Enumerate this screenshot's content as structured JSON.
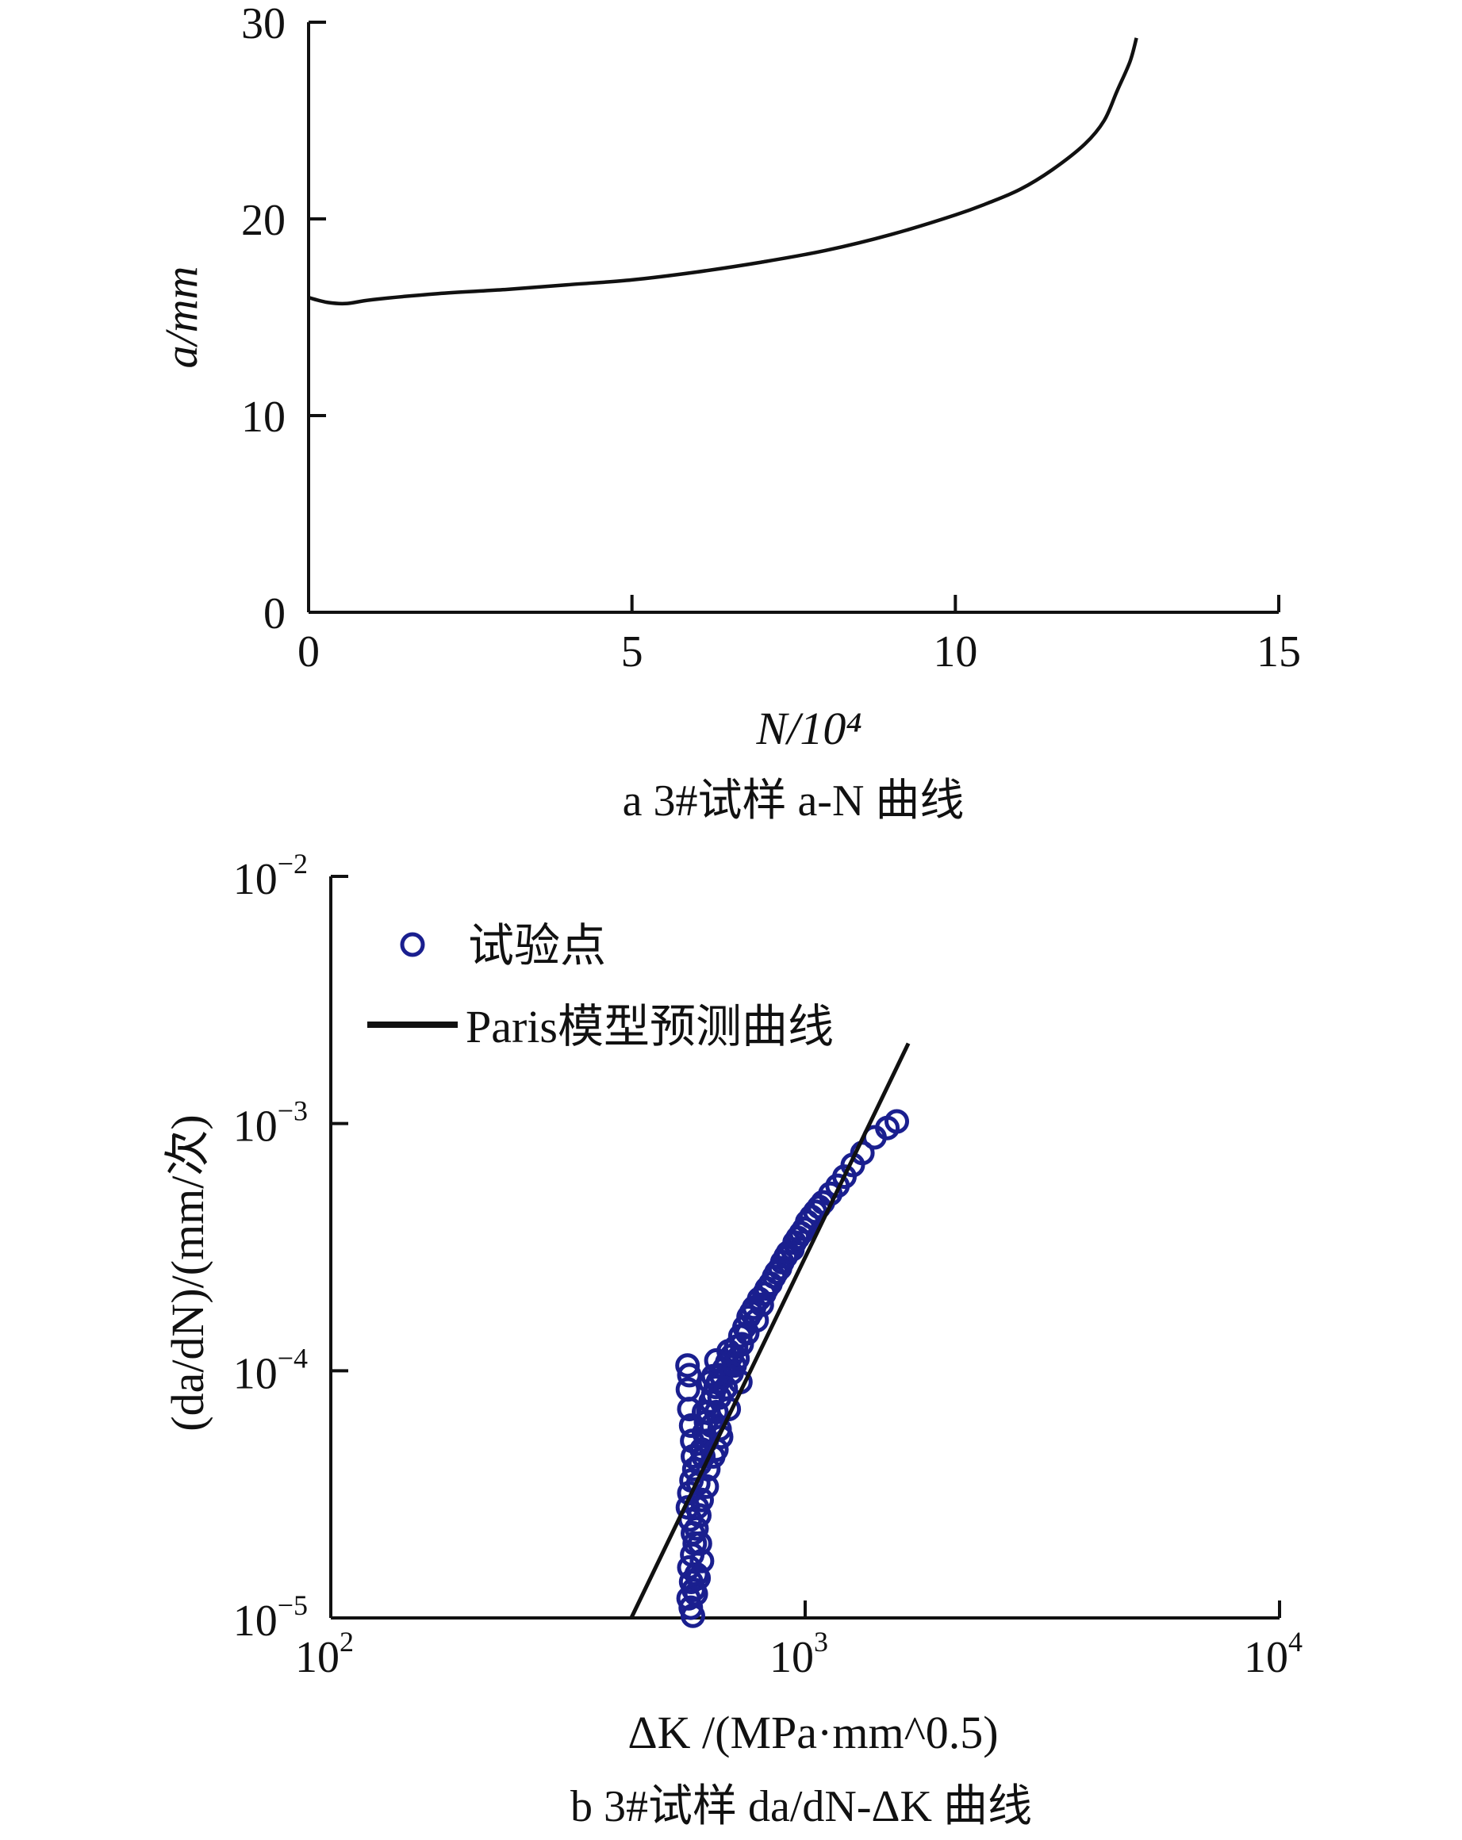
{
  "chart_data": [
    {
      "type": "line",
      "caption": "a  3#试样 a-N 曲线",
      "xlabel": "N/10⁴",
      "ylabel": "a/mm",
      "xlim": [
        0,
        15
      ],
      "ylim": [
        0,
        30
      ],
      "x_ticks": [
        "0",
        "5",
        "10",
        "15"
      ],
      "y_ticks": [
        "0",
        "10",
        "20",
        "30"
      ],
      "grid": false,
      "series": [
        {
          "x": [
            0,
            0.3,
            0.6,
            1,
            2,
            3,
            4,
            5,
            6,
            7,
            8,
            9,
            10,
            10.5,
            11,
            11.5,
            12,
            12.3,
            12.5,
            12.7,
            12.8
          ],
          "y": [
            16.0,
            15.75,
            15.7,
            15.9,
            16.2,
            16.4,
            16.65,
            16.9,
            17.3,
            17.8,
            18.4,
            19.2,
            20.2,
            20.8,
            21.5,
            22.5,
            23.8,
            25.0,
            26.5,
            28.0,
            29.2
          ]
        }
      ]
    },
    {
      "type": "scatter",
      "caption": "b  3#试样 da/dN-ΔK 曲线",
      "xlabel": "ΔK /(MPa·mm^0.5)",
      "ylabel": "(da/dN)/(mm/次)",
      "x_scale": "log",
      "y_scale": "log",
      "xlim": [
        100,
        10000
      ],
      "ylim": [
        1e-05,
        0.01
      ],
      "x_ticks": [
        "10^2",
        "10^3",
        "10^4"
      ],
      "y_ticks": [
        "10^-5",
        "10^-4",
        "10^-3",
        "10^-2"
      ],
      "grid": false,
      "legend_position": "top-left",
      "series": [
        {
          "name": "试验点",
          "marker": "circle",
          "color": "#1a1f8f",
          "points": [
            [
              565,
              0.000105
            ],
            [
              570,
              9.6e-05
            ],
            [
              566,
              8.4e-05
            ],
            [
              570,
              7e-05
            ],
            [
              575,
              6e-05
            ],
            [
              578,
              5.2e-05
            ],
            [
              580,
              4.5e-05
            ],
            [
              584,
              4e-05
            ],
            [
              576,
              3.6e-05
            ],
            [
              570,
              3.2e-05
            ],
            [
              566,
              2.8e-05
            ],
            [
              572,
              2.5e-05
            ],
            [
              580,
              2.2e-05
            ],
            [
              585,
              2e-05
            ],
            [
              578,
              1.8e-05
            ],
            [
              570,
              1.6e-05
            ],
            [
              575,
              1.4e-05
            ],
            [
              582,
              1.3e-05
            ],
            [
              568,
              1.2e-05
            ],
            [
              574,
              1.1e-05
            ],
            [
              580,
              1.02e-05
            ],
            [
              590,
              1.5e-05
            ],
            [
              592,
              2.8e-05
            ],
            [
              595,
              3.5e-05
            ],
            [
              600,
              4.2e-05
            ],
            [
              605,
              4.8e-05
            ],
            [
              612,
              5.6e-05
            ],
            [
              618,
              6.2e-05
            ],
            [
              625,
              6.8e-05
            ],
            [
              632,
              7.5e-05
            ],
            [
              640,
              8e-05
            ],
            [
              648,
              8.6e-05
            ],
            [
              655,
              9e-05
            ],
            [
              664,
              9.6e-05
            ],
            [
              675,
              0.000102
            ],
            [
              685,
              0.000108
            ],
            [
              700,
              0.000115
            ],
            [
              715,
              0.000125
            ],
            [
              730,
              0.000138
            ],
            [
              745,
              0.00015
            ],
            [
              760,
              0.000165
            ],
            [
              780,
              0.00018
            ],
            [
              800,
              0.000195
            ],
            [
              820,
              0.000205
            ],
            [
              845,
              0.000225
            ],
            [
              870,
              0.00025
            ],
            [
              895,
              0.000275
            ],
            [
              920,
              0.0003
            ],
            [
              950,
              0.00033
            ],
            [
              980,
              0.00036
            ],
            [
              1010,
              0.0004
            ],
            [
              1050,
              0.00044
            ],
            [
              1090,
              0.00048
            ],
            [
              1130,
              0.00052
            ],
            [
              1170,
              0.00056
            ],
            [
              1210,
              0.00061
            ],
            [
              1260,
              0.00068
            ],
            [
              1320,
              0.00076
            ],
            [
              1400,
              0.00088
            ],
            [
              1490,
              0.00096
            ],
            [
              1560,
              0.00102
            ],
            [
              610,
              4.5e-05
            ],
            [
              620,
              5.2e-05
            ],
            [
              635,
              6e-05
            ],
            [
              650,
              6.8e-05
            ],
            [
              660,
              5.8e-05
            ],
            [
              640,
              4.5e-05
            ],
            [
              625,
              4e-05
            ],
            [
              612,
              6.8e-05
            ],
            [
              630,
              9e-05
            ],
            [
              650,
              0.00011
            ],
            [
              640,
              9.5e-05
            ],
            [
              660,
              7.8e-05
            ],
            [
              680,
              8.5e-05
            ],
            [
              700,
              9.8e-05
            ],
            [
              690,
              0.00012
            ],
            [
              710,
              0.000105
            ],
            [
              720,
              0.000112
            ],
            [
              735,
              0.000128
            ],
            [
              755,
              0.000142
            ],
            [
              770,
              0.000172
            ],
            [
              790,
              0.00016
            ],
            [
              810,
              0.000185
            ],
            [
              830,
              0.000215
            ],
            [
              860,
              0.00024
            ],
            [
              885,
              0.00026
            ],
            [
              910,
              0.00029
            ],
            [
              940,
              0.00031
            ],
            [
              965,
              0.000345
            ],
            [
              995,
              0.000375
            ],
            [
              1030,
              0.00042
            ],
            [
              1070,
              0.00046
            ],
            [
              620,
              3.4e-05
            ],
            [
              605,
              3e-05
            ],
            [
              598,
              2.6e-05
            ],
            [
              590,
              2.3e-05
            ],
            [
              600,
              2e-05
            ],
            [
              606,
              1.7e-05
            ],
            [
              596,
              1.45e-05
            ],
            [
              588,
              1.25e-05
            ],
            [
              650,
              4.8e-05
            ],
            [
              665,
              5.4e-05
            ],
            [
              690,
              7e-05
            ],
            [
              730,
              9e-05
            ]
          ]
        },
        {
          "name": "Paris模型预测曲线",
          "style": "line",
          "color": "#111111",
          "x": [
            430,
            1650
          ],
          "y": [
            1e-05,
            0.00211
          ]
        }
      ]
    }
  ]
}
